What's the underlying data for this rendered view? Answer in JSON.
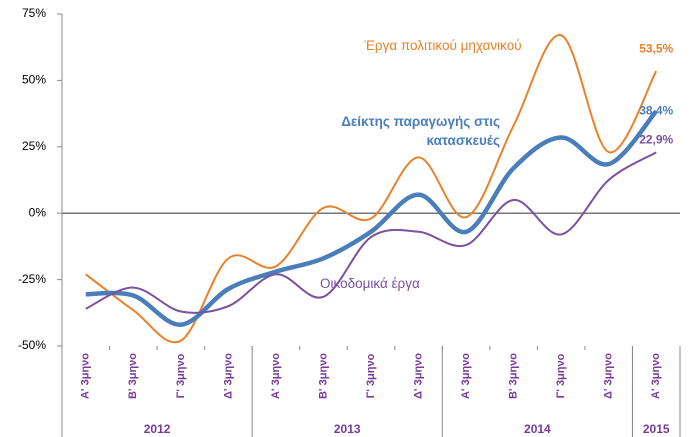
{
  "chart_data": {
    "type": "line",
    "categories": [
      "Α' 3μηνο",
      "Β' 3μηνο",
      "Γ' 3μηνο",
      "Δ' 3μηνο",
      "Α' 3μηνο",
      "Β' 3μηνο",
      "Γ' 3μηνο",
      "Δ' 3μηνο",
      "Α' 3μηνο",
      "Β' 3μηνο",
      "Γ' 3μηνο",
      "Δ' 3μηνο",
      "Α' 3μηνο"
    ],
    "category_groups": [
      {
        "label": "2012",
        "size": 4
      },
      {
        "label": "2013",
        "size": 4
      },
      {
        "label": "2014",
        "size": 4
      },
      {
        "label": "2015",
        "size": 1
      }
    ],
    "series": [
      {
        "name": "Έργα πολιτικού μηχανικού",
        "color": "#e8822a",
        "values": [
          -23,
          -36.5,
          -48,
          -17,
          -20,
          2,
          -2,
          21,
          -1.5,
          33,
          67,
          23,
          53.5
        ],
        "value_labels": [
          null,
          null,
          null,
          null,
          null,
          null,
          null,
          null,
          null,
          null,
          null,
          null,
          "53,5%"
        ]
      },
      {
        "name": "Δείκτης παραγωγής στις κατασκευές",
        "color": "#4a7ebb",
        "values": [
          -30.5,
          -31,
          -42,
          -28.5,
          -22,
          -17,
          -7,
          7,
          -7,
          17,
          28.5,
          18.5,
          38.4
        ],
        "value_labels": [
          null,
          null,
          null,
          null,
          null,
          null,
          null,
          null,
          null,
          null,
          null,
          null,
          "38,4%"
        ]
      },
      {
        "name": "Οικοδομικά έργα",
        "color": "#7a50a0",
        "values": [
          -36,
          -28,
          -37,
          -35,
          -23,
          -31.5,
          -9,
          -7,
          -12,
          5,
          -8,
          12.5,
          22.9
        ],
        "value_labels": [
          null,
          null,
          null,
          null,
          null,
          null,
          null,
          null,
          null,
          null,
          null,
          null,
          "22,9%"
        ]
      }
    ],
    "ylim": [
      -50,
      75
    ],
    "yticks": [
      {
        "value": -50,
        "label": "-50%"
      },
      {
        "value": -25,
        "label": "-25%"
      },
      {
        "value": 0,
        "label": "0%"
      },
      {
        "value": 25,
        "label": "25%"
      },
      {
        "value": 50,
        "label": "50%"
      },
      {
        "value": 75,
        "label": "75%"
      }
    ]
  }
}
